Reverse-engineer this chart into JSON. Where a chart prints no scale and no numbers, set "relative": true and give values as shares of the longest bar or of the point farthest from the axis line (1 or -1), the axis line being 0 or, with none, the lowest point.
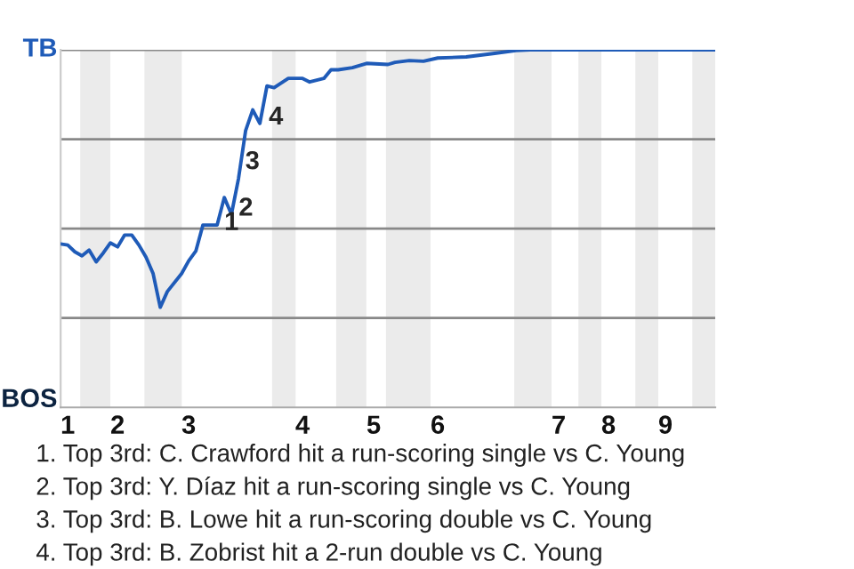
{
  "chart_data": {
    "type": "line",
    "relative": true,
    "categories": [
      null,
      "1",
      null,
      null,
      null,
      null,
      null,
      null,
      "2",
      null,
      null,
      null,
      null,
      null,
      null,
      null,
      null,
      null,
      "3",
      null,
      null,
      null,
      null,
      null,
      null,
      null,
      null,
      null,
      null,
      null,
      null,
      null,
      null,
      null,
      "4",
      null,
      null,
      null,
      null,
      null,
      null,
      null,
      null,
      null,
      "5",
      null,
      null,
      null,
      null,
      null,
      null,
      null,
      null,
      "6",
      null,
      null,
      null,
      null,
      null,
      null,
      null,
      null,
      null,
      null,
      null,
      null,
      null,
      null,
      null,
      null,
      "7",
      null,
      null,
      null,
      null,
      null,
      null,
      "8",
      null,
      null,
      null,
      null,
      null,
      null,
      null,
      "9",
      null,
      null,
      null,
      null,
      null,
      null,
      null
    ],
    "series": [
      {
        "color": "#1f5bb8",
        "values": [
          0.457,
          0.454,
          0.435,
          0.424,
          0.44,
          0.407,
          0.432,
          0.46,
          0.449,
          0.482,
          0.482,
          0.454,
          0.42,
          0.374,
          0.28,
          0.324,
          null,
          0.374,
          0.41,
          0.437,
          0.51,
          null,
          0.51,
          0.587,
          0.54,
          0.64,
          0.774,
          0.832,
          0.794,
          0.899,
          0.894,
          0.907,
          0.92,
          null,
          0.92,
          0.91,
          null,
          0.92,
          0.944,
          0.944,
          null,
          0.95,
          null,
          0.962,
          null,
          null,
          0.959,
          0.965,
          null,
          0.97,
          null,
          0.968,
          null,
          0.977,
          null,
          null,
          null,
          0.98,
          null,
          null,
          null,
          0.99,
          null,
          null,
          0.998,
          null,
          1,
          null,
          null,
          null,
          null,
          null,
          null,
          null,
          null,
          null,
          null,
          null,
          null,
          null,
          null,
          null,
          null,
          null,
          null,
          null,
          null,
          null,
          null,
          null,
          null,
          null,
          1
        ]
      }
    ],
    "grid": "y",
    "annotations": [
      "TB",
      "BOS",
      "1",
      "2",
      "3",
      "4",
      "1. Top 3rd: C. Crawford hit a run-scoring single vs C. Young",
      "2. Top 3rd: Y. Díaz hit a run-scoring single vs C. Young",
      "3. Top 3rd: B. Lowe hit a run-scoring double vs C. Young",
      "4. Top 3rd: B. Zobrist hit a 2-run double vs C. Young"
    ]
  }
}
